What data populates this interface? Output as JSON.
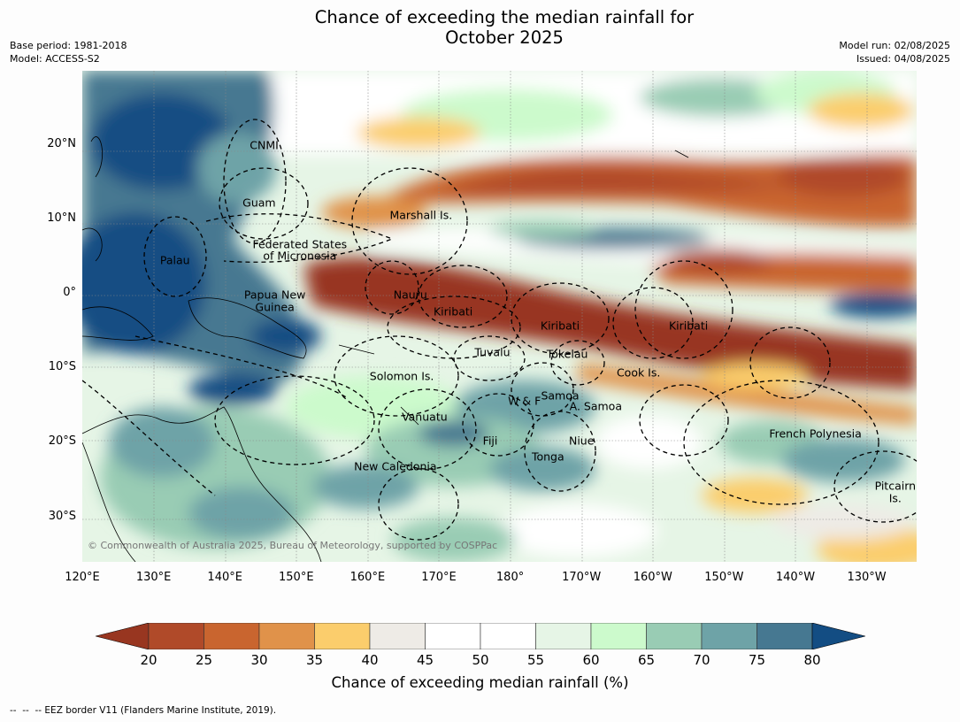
{
  "title_line1": "Chance of exceeding the median rainfall for",
  "title_line2": "October 2025",
  "meta": {
    "base_period": "Base period: 1981-2018",
    "model": "Model: ACCESS-S2",
    "model_run": "Model run: 02/08/2025",
    "issued": "Issued: 04/08/2025"
  },
  "map": {
    "lat_range": [
      -36,
      30
    ],
    "lon_range": [
      120,
      237
    ],
    "lat_ticks": [
      "20°N",
      "10°N",
      "0°",
      "10°S",
      "20°S",
      "30°S"
    ],
    "lon_ticks": [
      "120°E",
      "130°E",
      "140°E",
      "150°E",
      "160°E",
      "170°E",
      "180°",
      "170°W",
      "160°W",
      "150°W",
      "140°W",
      "130°W"
    ],
    "regions": [
      {
        "label": "CNMI",
        "lat": 20.0,
        "lon": 145.5
      },
      {
        "label": "Guam",
        "lat": 12.3,
        "lon": 144.8
      },
      {
        "label": "Marshall Is.",
        "lat": 10.6,
        "lon": 167.5
      },
      {
        "label": "Federated States",
        "lat": 6.7,
        "lon": 150.5
      },
      {
        "label": "of Micronesia",
        "lat": 5.1,
        "lon": 150.5
      },
      {
        "label": "Palau",
        "lat": 4.5,
        "lon": 133.0
      },
      {
        "label": "Papua New",
        "lat": -0.1,
        "lon": 147.0
      },
      {
        "label": "Guinea",
        "lat": -1.8,
        "lon": 147.0
      },
      {
        "label": "Nauru",
        "lat": -0.1,
        "lon": 166.0
      },
      {
        "label": "Kiribati",
        "lat": -2.3,
        "lon": 172.0
      },
      {
        "label": "Kiribati",
        "lat": -4.3,
        "lon": 187.0
      },
      {
        "label": "Kiribati",
        "lat": -4.3,
        "lon": 205.0
      },
      {
        "label": "Tuvalu",
        "lat": -7.8,
        "lon": 177.5
      },
      {
        "label": "Tokelau",
        "lat": -8.0,
        "lon": 188.0
      },
      {
        "label": "Solomon Is.",
        "lat": -11.0,
        "lon": 164.8
      },
      {
        "label": "Cook Is.",
        "lat": -10.6,
        "lon": 198.0
      },
      {
        "label": "Samoa",
        "lat": -13.6,
        "lon": 187.0
      },
      {
        "label": "W & F",
        "lat": -14.4,
        "lon": 182.0
      },
      {
        "label": "A. Samoa",
        "lat": -15.1,
        "lon": 192.0
      },
      {
        "label": "Vanuatu",
        "lat": -16.5,
        "lon": 168.0
      },
      {
        "label": "French Polynesia",
        "lat": -18.8,
        "lon": 222.8
      },
      {
        "label": "Fiji",
        "lat": -19.7,
        "lon": 177.2
      },
      {
        "label": "Niue",
        "lat": -19.7,
        "lon": 190.0
      },
      {
        "label": "Tonga",
        "lat": -21.9,
        "lon": 185.3
      },
      {
        "label": "New Caledonia",
        "lat": -23.1,
        "lon": 163.9
      },
      {
        "label": "Pitcairn",
        "lat": -25.8,
        "lon": 234.0
      },
      {
        "label": "Is.",
        "lat": -27.4,
        "lon": 234.0
      }
    ]
  },
  "copyright": "© Commonwealth of Australia 2025, Bureau of Meteorology, supported by COSPPac",
  "colorbar": {
    "ticks": [
      "20",
      "25",
      "30",
      "35",
      "40",
      "45",
      "50",
      "55",
      "60",
      "65",
      "70",
      "75",
      "80"
    ],
    "colors": [
      "#b04a29",
      "#c9652f",
      "#e0924a",
      "#fbcd6c",
      "#eeebe6",
      "#ffffff",
      "#ffffff",
      "#e6f5e6",
      "#ccfacc",
      "#99ccb4",
      "#6ea3a7",
      "#467891"
    ],
    "under_color": "#983620",
    "over_color": "#134d83",
    "label": "Chance of exceeding median rainfall (%)"
  },
  "footer": "--  --  -- EEZ border V11 (Flanders Marine Institute, 2019)."
}
